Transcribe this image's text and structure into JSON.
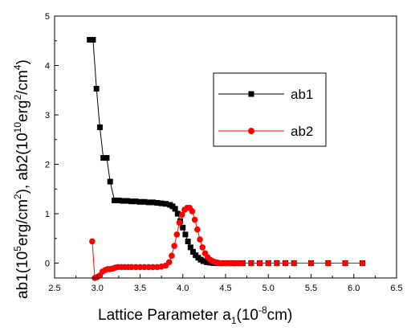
{
  "chart_data": {
    "type": "scatter",
    "xlabel": "Lattice Parameter a",
    "xlabel_sub": "1",
    "xlabel_tail": "(10",
    "xlabel_sup": "-8",
    "xlabel_end": "cm)",
    "ylabel_parts": {
      "p1": "ab1(10",
      "s1": "5",
      "p2": "erg/cm",
      "s2": "2",
      "p3": "), ab2(10",
      "s3": "10",
      "p4": "erg",
      "s4": "2",
      "p5": "/cm",
      "s5": "4",
      "p6": ")"
    },
    "xlim": [
      2.5,
      6.5
    ],
    "ylim": [
      -0.3,
      5
    ],
    "xticks": [
      "2.5",
      "3.0",
      "3.5",
      "4.0",
      "4.5",
      "5.0",
      "5.5",
      "6.0",
      "6.5"
    ],
    "yticks": [
      "0",
      "1",
      "2",
      "3",
      "4",
      "5"
    ],
    "grid": false,
    "legend_placement": "upper-right-center",
    "series": [
      {
        "name": "ab1",
        "color": "#000000",
        "marker": "square",
        "x": [
          2.91,
          2.95,
          2.99,
          3.03,
          3.07,
          3.11,
          3.15,
          3.2,
          3.25,
          3.3,
          3.35,
          3.4,
          3.45,
          3.5,
          3.55,
          3.6,
          3.65,
          3.7,
          3.75,
          3.8,
          3.85,
          3.88,
          3.91,
          3.94,
          3.97,
          4.0,
          4.03,
          4.06,
          4.09,
          4.12,
          4.15,
          4.18,
          4.21,
          4.24,
          4.28,
          4.32,
          4.36,
          4.4,
          4.45,
          4.5,
          4.55,
          4.6,
          4.7,
          4.8,
          4.9,
          5.0,
          5.1,
          5.2,
          5.3,
          5.5,
          5.7,
          5.9,
          6.1
        ],
        "y": [
          4.52,
          4.52,
          3.53,
          2.75,
          2.13,
          2.13,
          1.65,
          1.27,
          1.27,
          1.26,
          1.26,
          1.25,
          1.25,
          1.24,
          1.24,
          1.23,
          1.23,
          1.22,
          1.21,
          1.2,
          1.18,
          1.15,
          1.1,
          1.0,
          0.85,
          0.72,
          0.58,
          0.44,
          0.32,
          0.23,
          0.16,
          0.11,
          0.07,
          0.04,
          0.02,
          0.01,
          0.0,
          0.0,
          0.0,
          0.0,
          0.0,
          0.0,
          0.0,
          0.0,
          0.0,
          0.0,
          0.0,
          0.0,
          0.0,
          0.0,
          0.0,
          0.0,
          0.0
        ]
      },
      {
        "name": "ab2",
        "color": "#ff0000",
        "marker": "circle",
        "x": [
          2.94,
          2.97,
          3.0,
          3.03,
          3.06,
          3.09,
          3.12,
          3.15,
          3.18,
          3.21,
          3.24,
          3.28,
          3.32,
          3.36,
          3.4,
          3.45,
          3.5,
          3.55,
          3.6,
          3.65,
          3.7,
          3.75,
          3.8,
          3.84,
          3.87,
          3.9,
          3.93,
          3.96,
          3.99,
          4.02,
          4.05,
          4.08,
          4.11,
          4.14,
          4.17,
          4.2,
          4.23,
          4.26,
          4.29,
          4.32,
          4.35,
          4.38,
          4.41,
          4.45,
          4.5,
          4.55,
          4.6,
          4.65,
          4.7,
          4.8,
          4.9,
          5.0,
          5.1,
          5.2,
          5.3,
          5.5,
          5.7,
          5.9,
          6.1
        ],
        "y": [
          0.44,
          -0.3,
          -0.28,
          -0.25,
          -0.17,
          -0.14,
          -0.12,
          -0.12,
          -0.11,
          -0.09,
          -0.08,
          -0.08,
          -0.08,
          -0.08,
          -0.08,
          -0.08,
          -0.08,
          -0.08,
          -0.08,
          -0.08,
          -0.08,
          -0.07,
          -0.05,
          0.02,
          0.15,
          0.35,
          0.58,
          0.82,
          0.98,
          1.08,
          1.12,
          1.12,
          1.05,
          0.88,
          0.68,
          0.48,
          0.32,
          0.2,
          0.12,
          0.07,
          0.04,
          0.02,
          0.01,
          0.0,
          0.0,
          0.0,
          0.0,
          0.0,
          0.0,
          0.0,
          0.0,
          0.0,
          0.0,
          0.0,
          0.0,
          0.0,
          0.0,
          0.0,
          0.0
        ]
      }
    ]
  }
}
